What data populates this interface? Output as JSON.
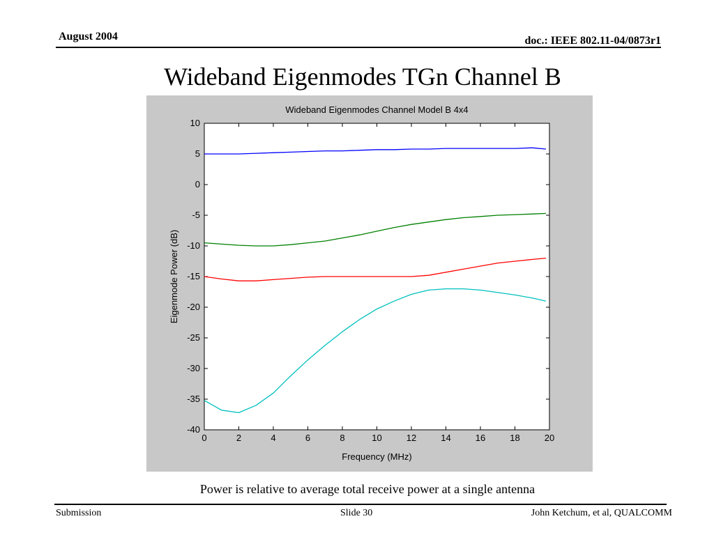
{
  "header": {
    "date": "August 2004",
    "doc_id": "doc.: IEEE 802.11-04/0873r1"
  },
  "slide_title": "Wideband Eigenmodes TGn Channel B",
  "caption": "Power is relative to average total receive power at a single antenna",
  "footer": {
    "left": "Submission",
    "center": "Slide 30",
    "right": "John Ketchum, et al, QUALCOMM"
  },
  "colors": {
    "figure_bg": "#c8c8c8",
    "axes_bg": "#ffffff",
    "series": [
      "#0000ff",
      "#008000",
      "#ff0000",
      "#00bfbf"
    ]
  },
  "chart_data": {
    "type": "line",
    "title": "Wideband Eigenmodes Channel Model B 4x4",
    "xlabel": "Frequency (MHz)",
    "ylabel": "Eigenmode Power (dB)",
    "xlim": [
      0,
      20
    ],
    "ylim": [
      -40,
      10
    ],
    "xticks": [
      0,
      2,
      4,
      6,
      8,
      10,
      12,
      14,
      16,
      18,
      20
    ],
    "yticks": [
      10,
      5,
      0,
      -5,
      -10,
      -15,
      -20,
      -25,
      -30,
      -35,
      -40
    ],
    "grid": false,
    "x": [
      0,
      1,
      2,
      3,
      4,
      5,
      6,
      7,
      8,
      9,
      10,
      11,
      12,
      13,
      14,
      15,
      16,
      17,
      18,
      19,
      19.8
    ],
    "series": [
      {
        "values": [
          5.0,
          5.0,
          5.0,
          5.1,
          5.2,
          5.3,
          5.4,
          5.5,
          5.5,
          5.6,
          5.7,
          5.7,
          5.8,
          5.8,
          5.9,
          5.9,
          5.9,
          5.9,
          5.9,
          6.0,
          5.8
        ]
      },
      {
        "values": [
          -9.5,
          -9.7,
          -9.9,
          -10.0,
          -10.0,
          -9.8,
          -9.5,
          -9.2,
          -8.7,
          -8.2,
          -7.6,
          -7.0,
          -6.5,
          -6.1,
          -5.7,
          -5.4,
          -5.2,
          -5.0,
          -4.9,
          -4.8,
          -4.7
        ]
      },
      {
        "values": [
          -15.0,
          -15.4,
          -15.7,
          -15.7,
          -15.5,
          -15.3,
          -15.1,
          -15.0,
          -15.0,
          -15.0,
          -15.0,
          -15.0,
          -15.0,
          -14.8,
          -14.3,
          -13.8,
          -13.3,
          -12.8,
          -12.5,
          -12.2,
          -12.0
        ]
      },
      {
        "values": [
          -35.2,
          -36.8,
          -37.2,
          -36.0,
          -34.0,
          -31.2,
          -28.6,
          -26.2,
          -24.0,
          -22.0,
          -20.3,
          -19.0,
          -17.9,
          -17.2,
          -17.0,
          -17.0,
          -17.2,
          -17.6,
          -18.0,
          -18.5,
          -19.0
        ]
      }
    ]
  }
}
